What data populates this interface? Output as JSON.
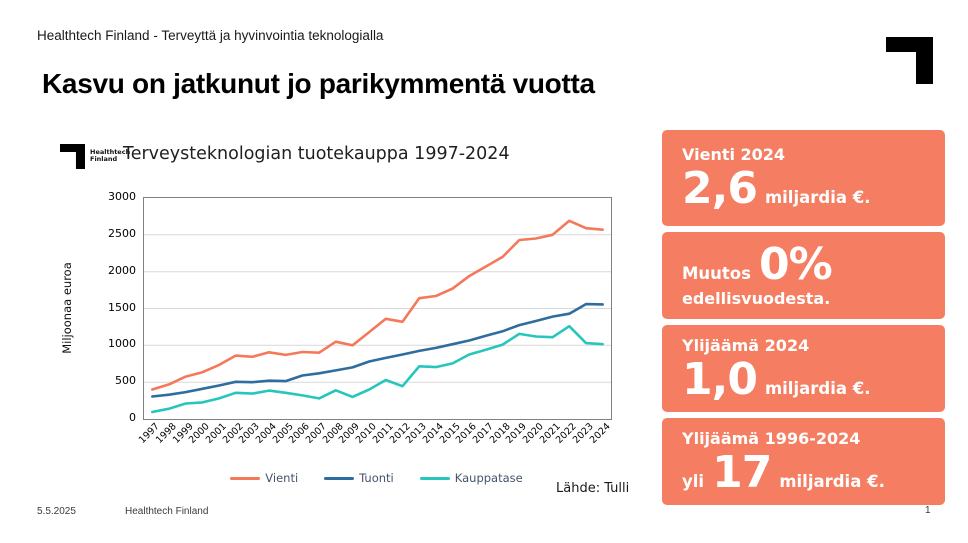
{
  "header": {
    "tagline": "Healthtech Finland - Terveyttä ja hyvinvointia teknologialla"
  },
  "title": "Kasvu on jatkunut jo parikymmentä vuotta",
  "chart": {
    "logo_line1": "Healthtech",
    "logo_line2": "Finland",
    "title": "Terveysteknologian tuotekauppa 1997-2024",
    "y_axis_title": "Miljoonaa euroa",
    "source": "Lähde: Tulli"
  },
  "chart_data": {
    "type": "line",
    "title": "Terveysteknologian tuotekauppa 1997-2024",
    "xlabel": "",
    "ylabel": "Miljoonaa euroa",
    "ylim": [
      0,
      3000
    ],
    "ytick_interval": 500,
    "grid": true,
    "legend_position": "bottom",
    "categories": [
      "1997",
      "1998",
      "1999",
      "2000",
      "2001",
      "2002",
      "2003",
      "2004",
      "2005",
      "2006",
      "2007",
      "2008",
      "2009",
      "2010",
      "2011",
      "2012",
      "2013",
      "2014",
      "2015",
      "2016",
      "2017",
      "2018",
      "2019",
      "2020",
      "2021",
      "2022",
      "2023",
      "2024"
    ],
    "series": [
      {
        "name": "Vienti",
        "color": "#F4795B",
        "values": [
          400,
          470,
          575,
          635,
          735,
          860,
          845,
          905,
          870,
          910,
          900,
          1050,
          1000,
          1180,
          1360,
          1320,
          1640,
          1670,
          1770,
          1940,
          2070,
          2200,
          2430,
          2450,
          2500,
          2690,
          2590,
          2570
        ]
      },
      {
        "name": "Tuonti",
        "color": "#2E6D9E",
        "values": [
          305,
          330,
          365,
          410,
          455,
          505,
          500,
          520,
          515,
          590,
          620,
          660,
          700,
          780,
          830,
          875,
          925,
          965,
          1015,
          1065,
          1130,
          1190,
          1275,
          1330,
          1390,
          1430,
          1560,
          1555
        ]
      },
      {
        "name": "Kauppatase",
        "color": "#26C6BD",
        "values": [
          95,
          140,
          210,
          225,
          280,
          355,
          345,
          385,
          355,
          320,
          280,
          390,
          300,
          400,
          530,
          445,
          715,
          705,
          755,
          875,
          940,
          1010,
          1155,
          1120,
          1110,
          1260,
          1030,
          1015
        ]
      }
    ]
  },
  "stat_boxes": {
    "vienti": {
      "label": "Vienti 2024",
      "big": "2,6",
      "suffix": "miljardia €."
    },
    "muutos": {
      "prefix": "Muutos",
      "big": "0%",
      "suffix": "edellisvuodesta."
    },
    "ylijaama2024": {
      "label": "Ylijäämä 2024",
      "big": "1,0",
      "suffix": "miljardia €."
    },
    "ylijaamaCum": {
      "label": "Ylijäämä 1996-2024",
      "prefix": "yli",
      "big": "17",
      "suffix": "miljardia €."
    }
  },
  "footer": {
    "date": "5.5.2025",
    "org": "Healthtech Finland",
    "page": "1"
  },
  "colors": {
    "accent_orange": "#F57E62",
    "line_vienti": "#F4795B",
    "line_tuonti": "#2E6D9E",
    "line_kauppatase": "#26C6BD",
    "gridline": "#d9d9d9",
    "legend_text": "#44546A"
  }
}
